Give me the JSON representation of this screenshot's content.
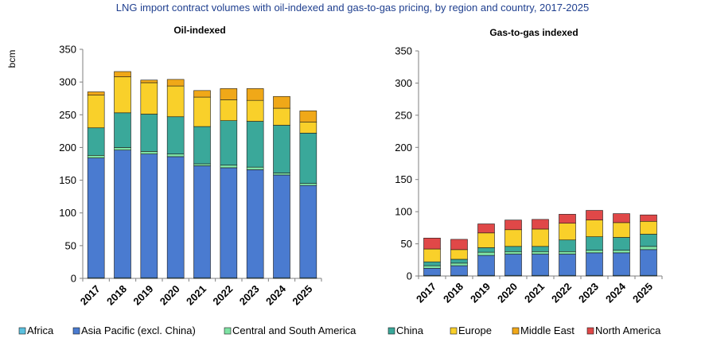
{
  "title": "LNG import contract volumes with oil-indexed and gas-to-gas pricing, by region and country, 2017-2025",
  "ylabel": "bcm",
  "colors": {
    "title": "#1f3f8f",
    "Africa": "#5bc0de",
    "Asia Pacific (excl. China)": "#4a7bd0",
    "Central and South America": "#7fe3a4",
    "China": "#3aa89a",
    "Europe": "#f9d02a",
    "Middle East": "#f0a818",
    "North America": "#e04848"
  },
  "legend": [
    "Africa",
    "Asia Pacific (excl. China)",
    "Central and South America",
    "China",
    "Europe",
    "Middle East",
    "North America"
  ],
  "chart_data": [
    {
      "type": "bar",
      "stacked": true,
      "title": "Oil-indexed",
      "ylabel": "bcm",
      "ylim": [
        0,
        350
      ],
      "yticks": [
        0,
        50,
        100,
        150,
        200,
        250,
        300,
        350
      ],
      "categories": [
        "2017",
        "2018",
        "2019",
        "2020",
        "2021",
        "2022",
        "2023",
        "2024",
        "2025"
      ],
      "series": [
        {
          "name": "Africa",
          "values": [
            1,
            1,
            1,
            1,
            1,
            1,
            1,
            1,
            1
          ]
        },
        {
          "name": "Asia Pacific (excl. China)",
          "values": [
            183,
            195,
            189,
            185,
            171,
            168,
            165,
            157,
            141
          ]
        },
        {
          "name": "Central and South America",
          "values": [
            4,
            4,
            4,
            4,
            3,
            4,
            4,
            3,
            3
          ]
        },
        {
          "name": "China",
          "values": [
            42,
            53,
            57,
            57,
            57,
            68,
            70,
            73,
            77
          ]
        },
        {
          "name": "Europe",
          "values": [
            50,
            55,
            48,
            47,
            45,
            32,
            32,
            26,
            17
          ]
        },
        {
          "name": "Middle East",
          "values": [
            5,
            8,
            4,
            10,
            10,
            17,
            18,
            18,
            17
          ]
        },
        {
          "name": "North America",
          "values": [
            0,
            0,
            0,
            0,
            0,
            0,
            0,
            0,
            0
          ]
        }
      ]
    },
    {
      "type": "bar",
      "stacked": true,
      "title": "Gas-to-gas indexed",
      "ylabel": "",
      "ylim": [
        0,
        350
      ],
      "yticks": [
        0,
        50,
        100,
        150,
        200,
        250,
        300,
        350
      ],
      "categories": [
        "2017",
        "2018",
        "2019",
        "2020",
        "2021",
        "2022",
        "2023",
        "2024",
        "2025"
      ],
      "series": [
        {
          "name": "Africa",
          "values": [
            1,
            1,
            1,
            1,
            1,
            1,
            1,
            1,
            1
          ]
        },
        {
          "name": "Asia Pacific (excl. China)",
          "values": [
            11,
            15,
            31,
            33,
            33,
            33,
            35,
            35,
            40
          ]
        },
        {
          "name": "Central and South America",
          "values": [
            4,
            4,
            5,
            4,
            4,
            4,
            4,
            4,
            5
          ]
        },
        {
          "name": "China",
          "values": [
            6,
            6,
            7,
            8,
            8,
            18,
            21,
            20,
            19
          ]
        },
        {
          "name": "Europe",
          "values": [
            20,
            15,
            23,
            26,
            27,
            26,
            26,
            23,
            20
          ]
        },
        {
          "name": "Middle East",
          "values": [
            0,
            0,
            0,
            0,
            0,
            0,
            0,
            0,
            0
          ]
        },
        {
          "name": "North America",
          "values": [
            17,
            16,
            14,
            15,
            15,
            14,
            15,
            14,
            10
          ]
        }
      ]
    }
  ]
}
